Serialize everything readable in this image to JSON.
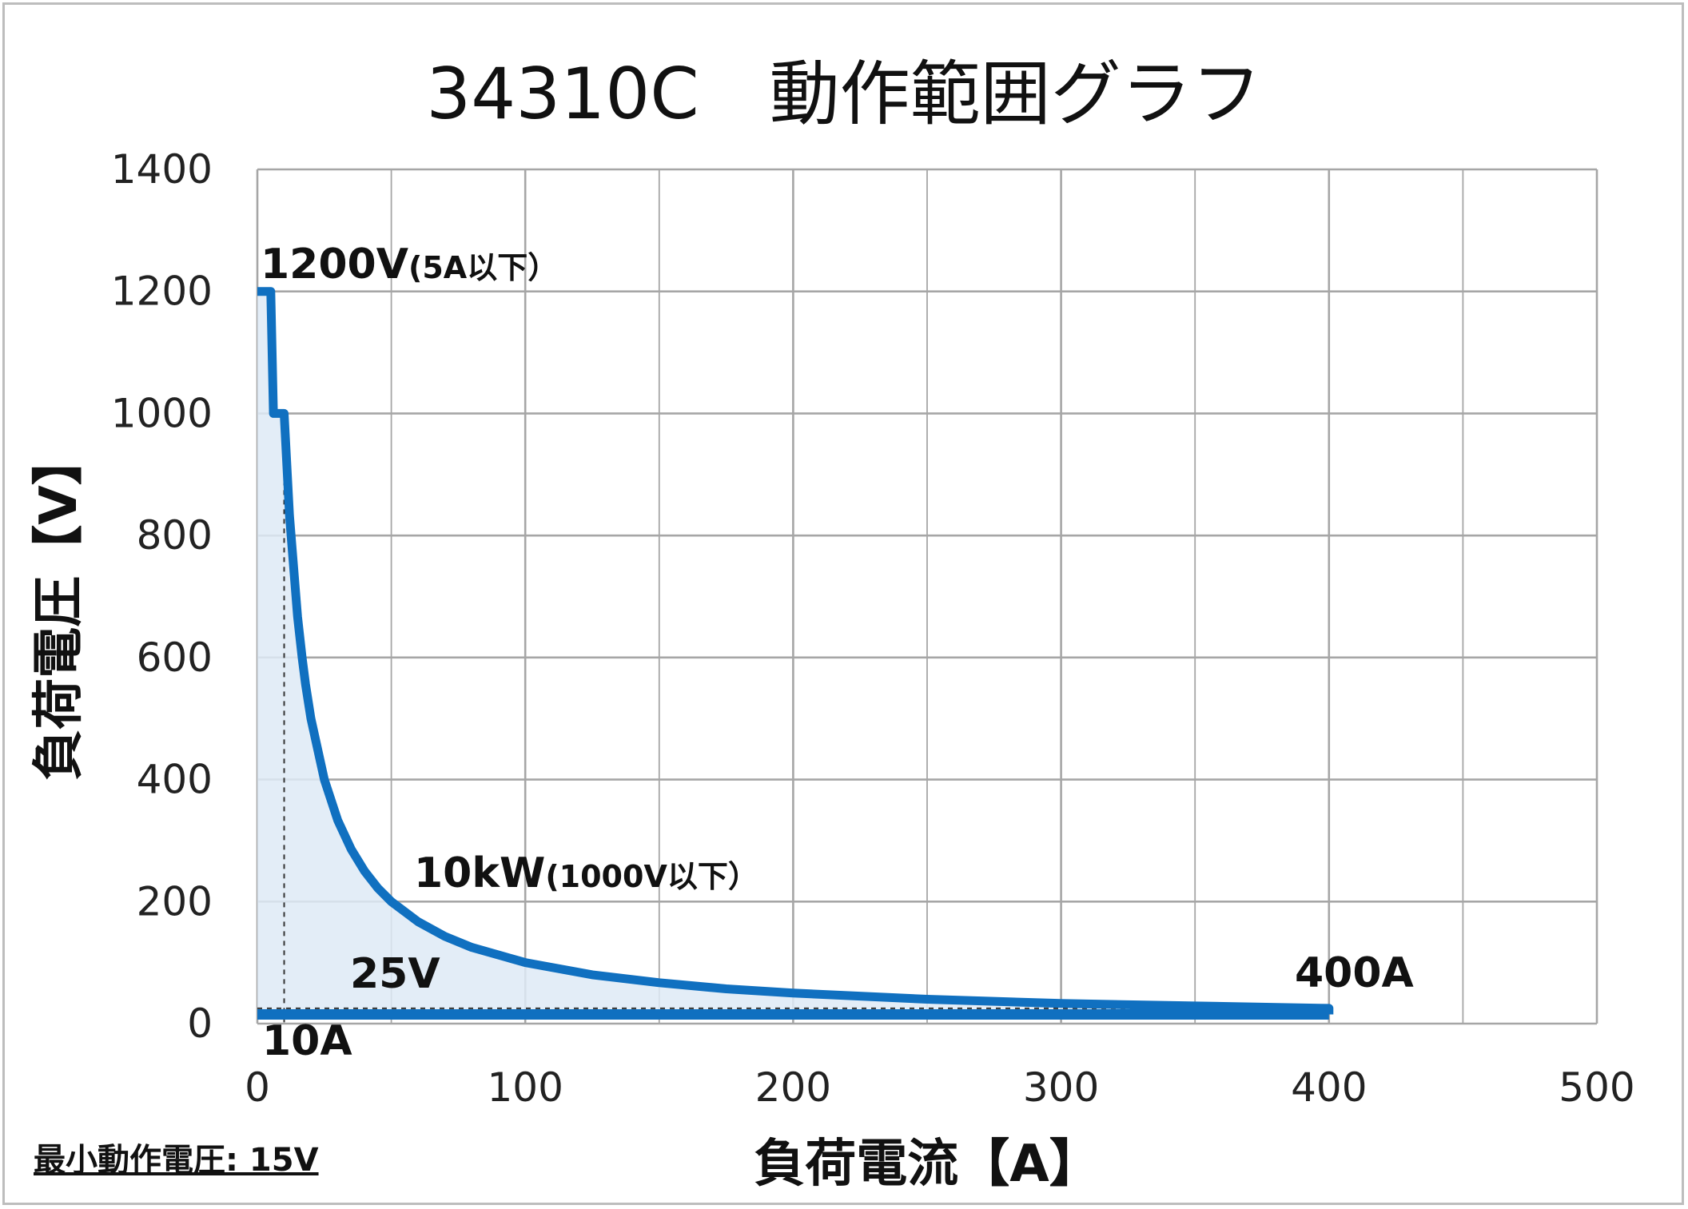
{
  "chart_data": {
    "type": "area",
    "title": "34310C　動作範囲グラフ",
    "xlabel": "負荷電流【A】",
    "ylabel": "負荷電圧【V】",
    "xlim": [
      0,
      500
    ],
    "ylim": [
      0,
      1400
    ],
    "x_ticks": [
      "0",
      "100",
      "200",
      "300",
      "400",
      "500"
    ],
    "y_ticks": [
      "0",
      "200",
      "400",
      "600",
      "800",
      "1000",
      "1200",
      "1400"
    ],
    "grid": true,
    "colors": {
      "line": "#1070c0",
      "fill": "#deeaf6",
      "grid": "#a6a6a6"
    },
    "series": [
      {
        "x": [
          0,
          5,
          6,
          7,
          8,
          9,
          10,
          12,
          15,
          16.7,
          18,
          20,
          25,
          30,
          35,
          40,
          45,
          50,
          60,
          70,
          80,
          100,
          125,
          150,
          175,
          200,
          250,
          300,
          350,
          400,
          400
        ],
        "y": [
          1200,
          1200,
          1000,
          1000,
          1000,
          1000,
          1000,
          833,
          667,
          600,
          556,
          500,
          400,
          333,
          286,
          250,
          222,
          200,
          167,
          143,
          125,
          100,
          80,
          67,
          57,
          50,
          40,
          33,
          29,
          25,
          15
        ]
      }
    ],
    "baseline": {
      "x": [
        0,
        400
      ],
      "y": [
        15,
        15
      ]
    },
    "guides": {
      "current_a": 10,
      "voltage_v": 25
    },
    "annotations": {
      "v_max_main": "1200V",
      "v_max_sub": "(5A以下）",
      "power_main": "10kW",
      "power_sub": "(1000V以下）",
      "v_min_label": "25V",
      "i_min_label": "10A",
      "i_max_label": "400A"
    }
  },
  "footnote": "最小動作電圧: 15V"
}
